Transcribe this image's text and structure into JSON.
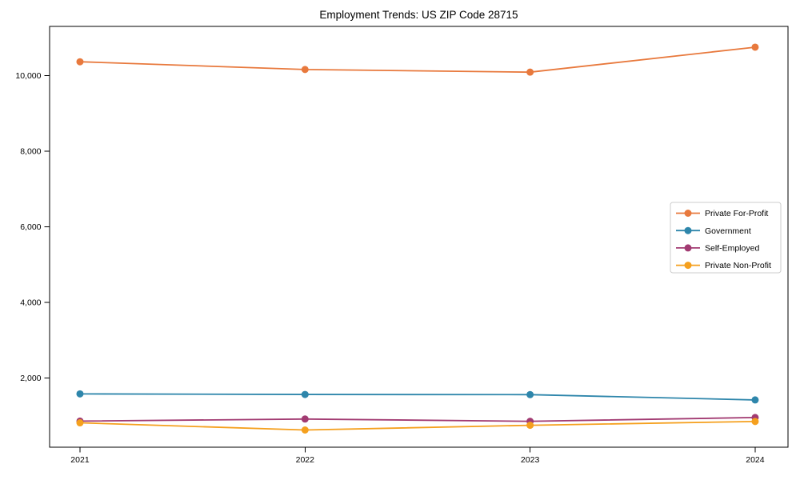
{
  "chart_data": {
    "type": "line",
    "title": "Employment Trends: US ZIP Code 28715",
    "xlabel": "",
    "ylabel": "",
    "x": [
      2021,
      2022,
      2023,
      2024
    ],
    "x_tick_labels": [
      "2021",
      "2022",
      "2023",
      "2024"
    ],
    "y_ticks": [
      2000,
      4000,
      6000,
      8000,
      10000
    ],
    "y_tick_labels": [
      "2,000",
      "4,000",
      "6,000",
      "8,000",
      "10,000"
    ],
    "xlim": [
      2020.865,
      2024.146
    ],
    "ylim": [
      170,
      11300
    ],
    "grid": false,
    "legend_position": "center-right",
    "series": [
      {
        "name": "Private For-Profit",
        "color": "#E8793D",
        "values": [
          10365,
          10160,
          10090,
          10750
        ]
      },
      {
        "name": "Government",
        "color": "#2E86AB",
        "values": [
          1580,
          1565,
          1560,
          1420
        ]
      },
      {
        "name": "Self-Employed",
        "color": "#A23B72",
        "values": [
          860,
          915,
          855,
          955
        ]
      },
      {
        "name": "Private Non-Profit",
        "color": "#F5A01E",
        "values": [
          815,
          625,
          750,
          850
        ]
      }
    ],
    "marker": "circle",
    "axis_color": "#000000",
    "background_color": "#ffffff"
  }
}
